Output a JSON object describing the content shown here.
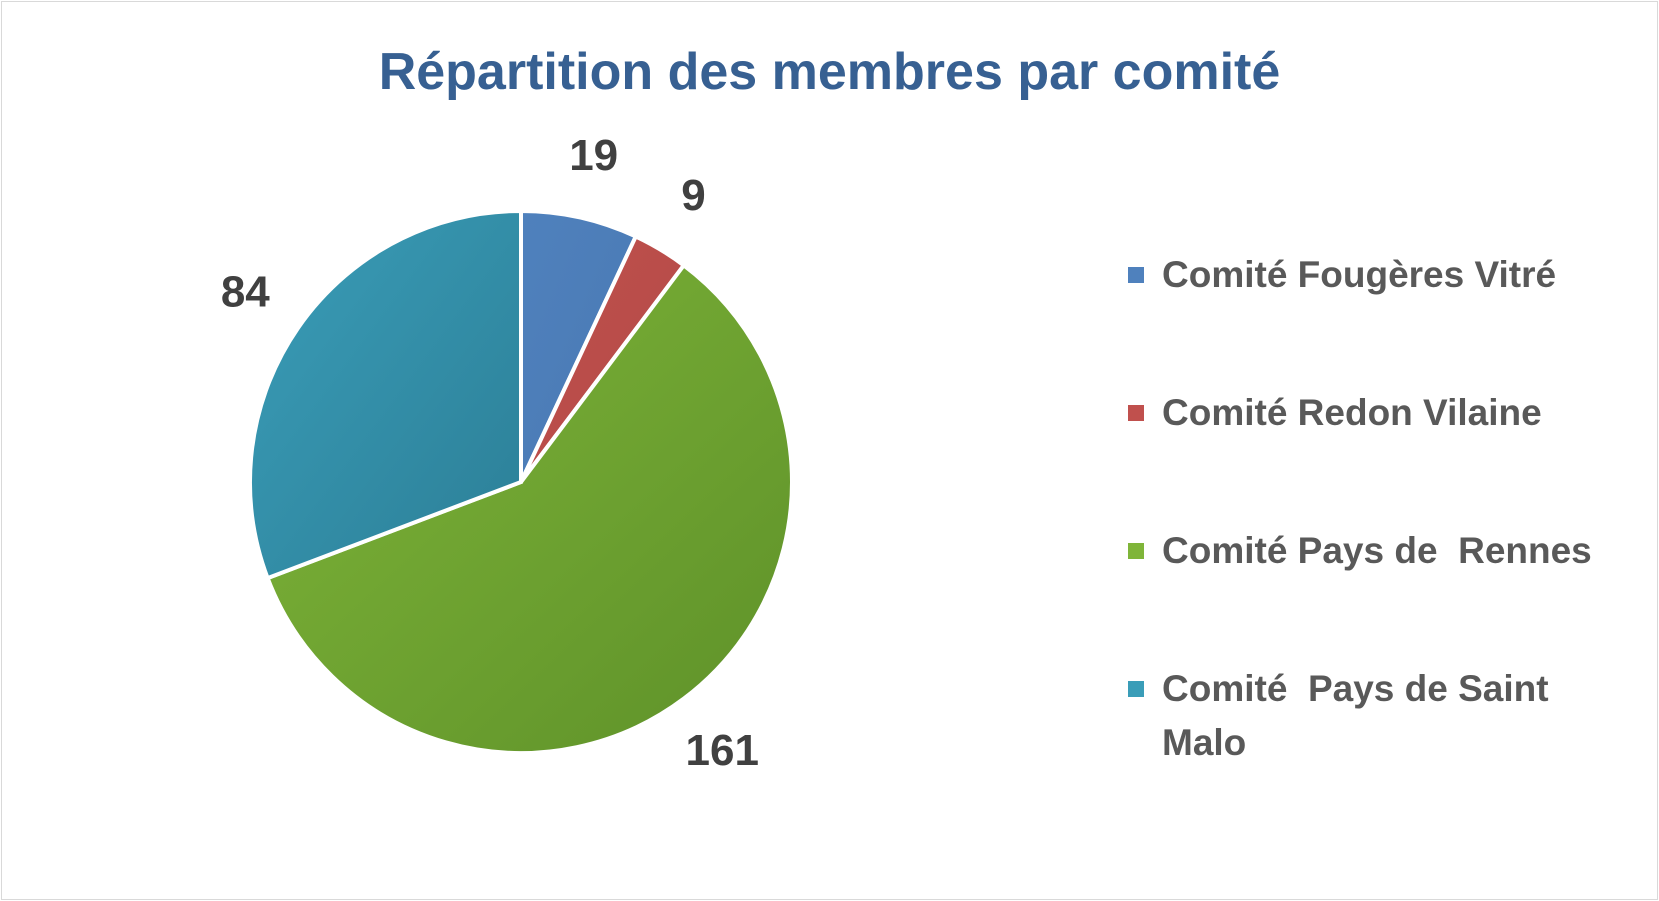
{
  "chart_data": {
    "type": "pie",
    "title": "Répartition des membres par comité",
    "categories": [
      "Comité Fougères Vitré",
      "Comité Redon Vilaine",
      "Comité Pays de  Rennes",
      "Comité  Pays de Saint Malo"
    ],
    "values": [
      19,
      9,
      161,
      84
    ],
    "data_labels": [
      "19",
      "9",
      "161",
      "84"
    ],
    "colors": [
      "#4F81BD",
      "#C0504D",
      "#7FB539",
      "#3A9DB8"
    ],
    "gradient_dark": [
      "#4A79B3",
      "#B34A47",
      "#5E9129",
      "#2C7F97"
    ],
    "start_angle_deg": 0,
    "direction": "clockwise",
    "legend_position": "right"
  }
}
